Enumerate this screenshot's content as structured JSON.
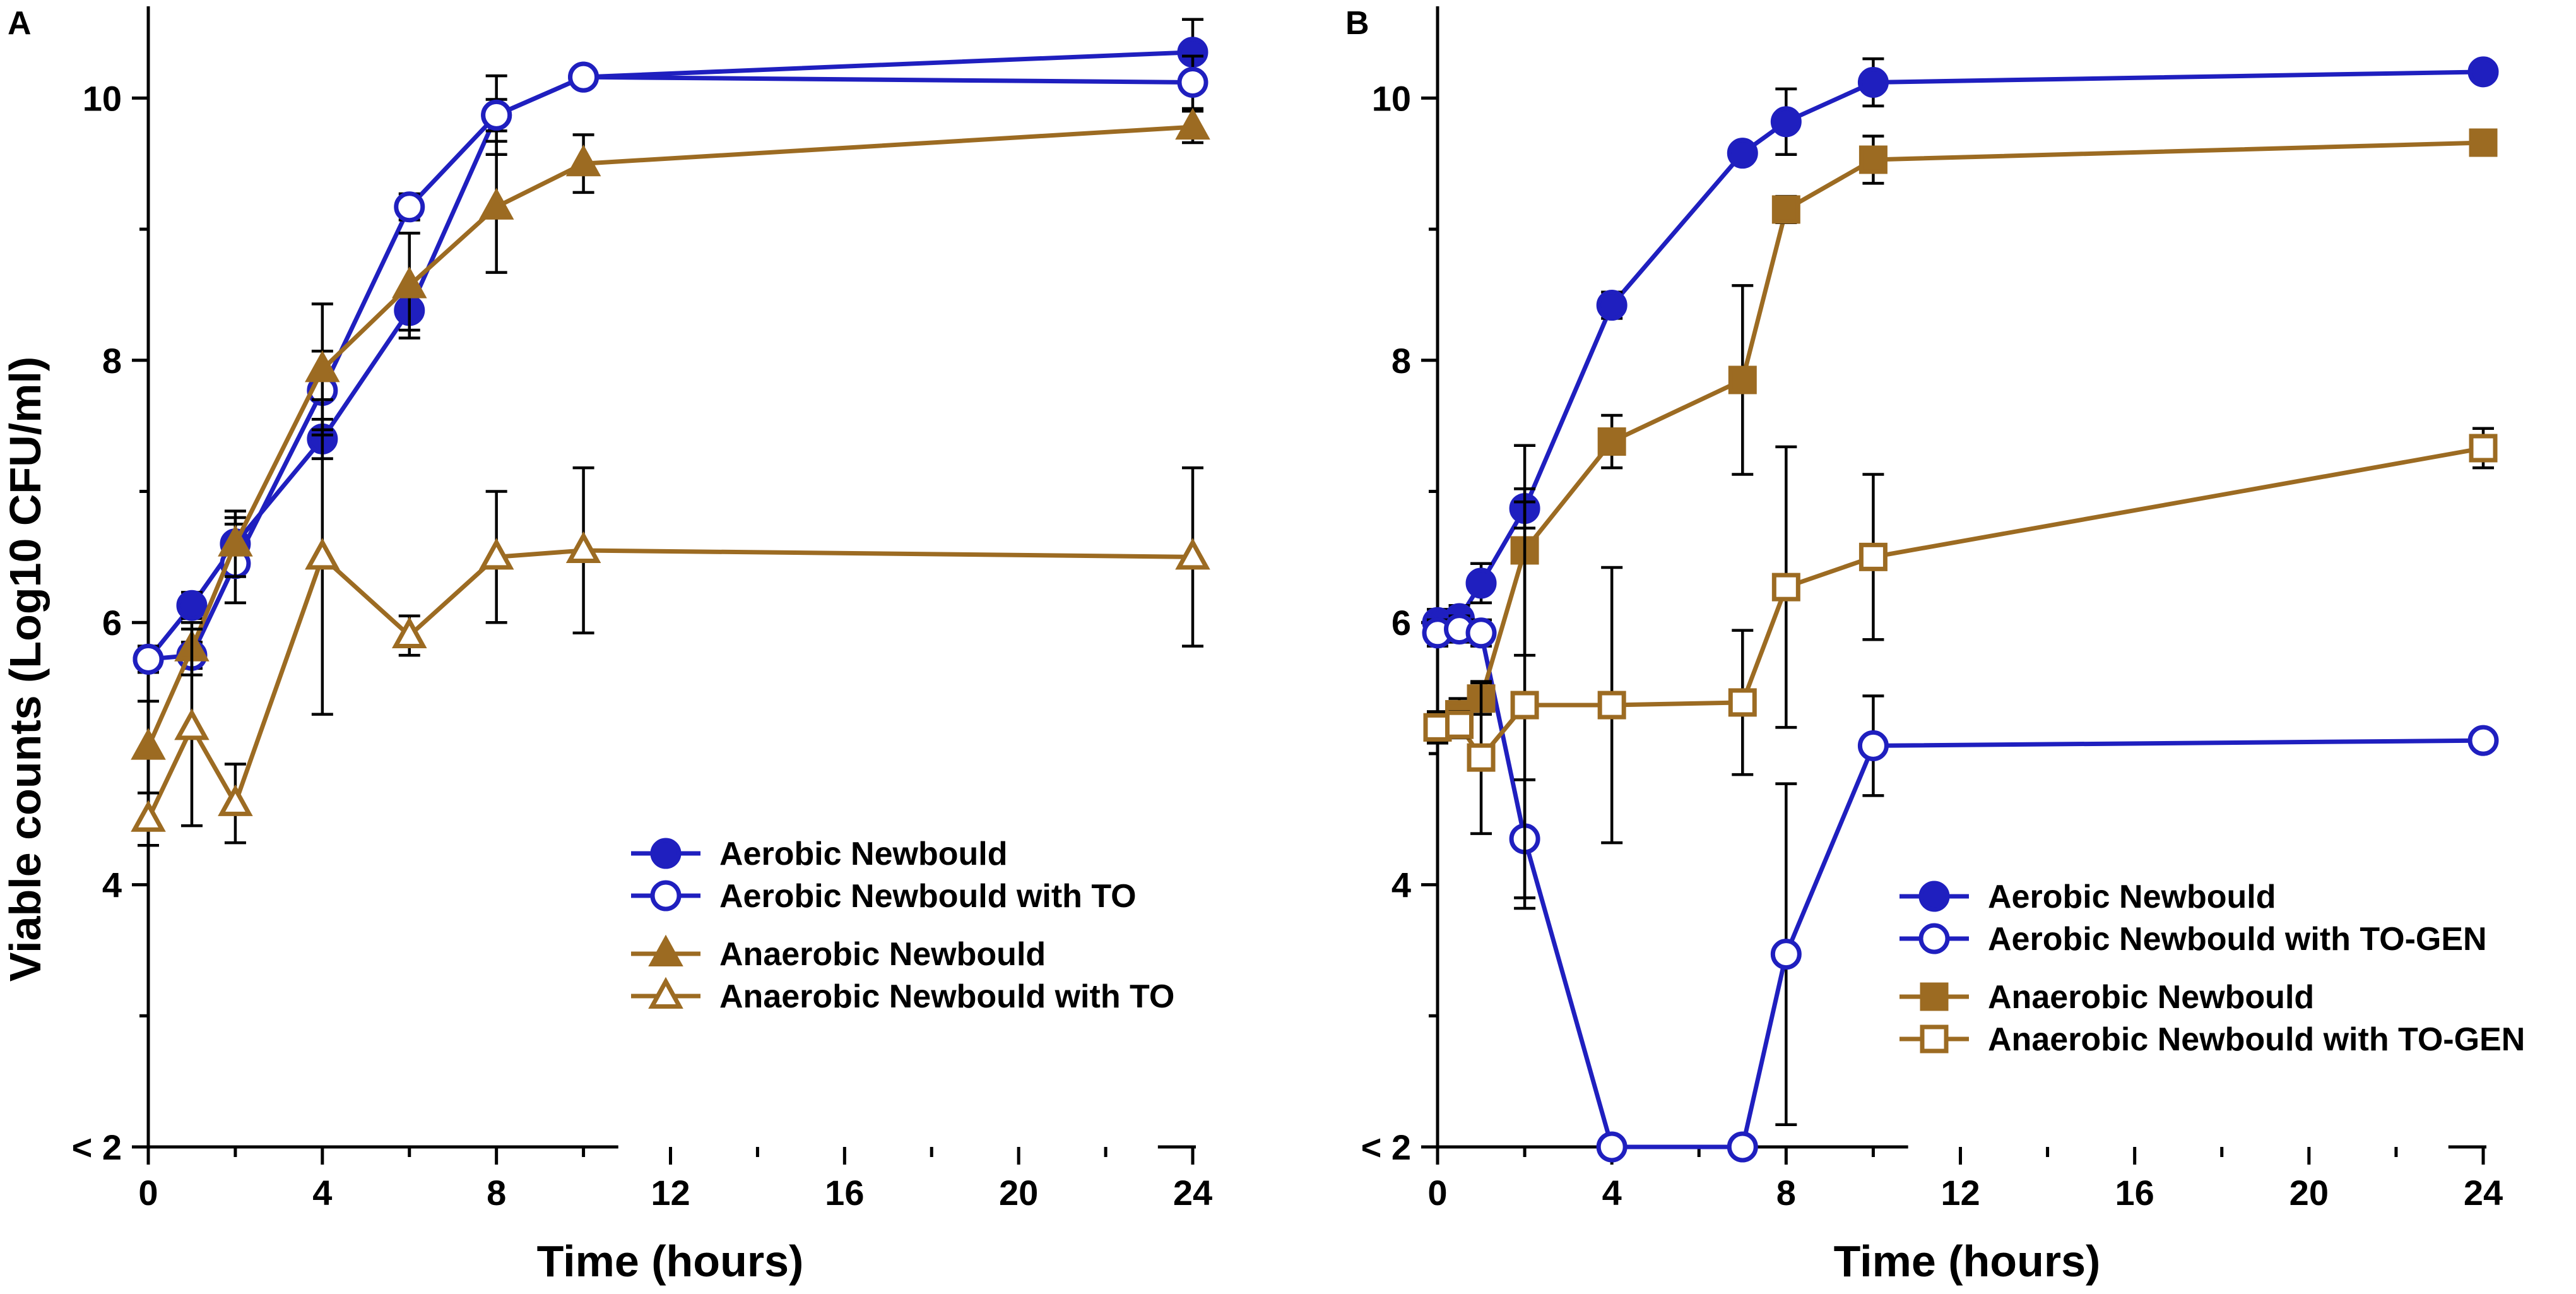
{
  "chart_data": [
    {
      "type": "line",
      "panel": "A",
      "xlabel": "Time (hours)",
      "ylabel": "Viable counts (Log10 CFU/ml)",
      "xlim": [
        0,
        24
      ],
      "ylim": [
        2,
        10.7
      ],
      "xticks": [
        0,
        4,
        8,
        12,
        16,
        20,
        24
      ],
      "xtick_labels": [
        "0",
        "4",
        "8",
        "12",
        "16",
        "20",
        "24"
      ],
      "yticks": [
        2,
        4,
        6,
        8,
        10
      ],
      "ytick_labels": [
        "< 2",
        "4",
        "6",
        "8",
        "10"
      ],
      "x_break": [
        10.8,
        23.2
      ],
      "legend_position": "lower-right",
      "series": [
        {
          "name": "Aerobic Newbould",
          "color": "#1f1fbf",
          "marker": "circle",
          "filled": true,
          "x": [
            0,
            1,
            2,
            4,
            6,
            8,
            10,
            24
          ],
          "y": [
            5.72,
            6.13,
            6.6,
            7.4,
            8.38,
            9.87,
            10.16,
            10.35
          ],
          "err": [
            0.1,
            0.1,
            0.2,
            0.15,
            0.15,
            0.12,
            0.05,
            0.25
          ]
        },
        {
          "name": "Aerobic Newbould with TO",
          "color": "#1f1fbf",
          "marker": "circle",
          "filled": false,
          "x": [
            0,
            1,
            2,
            4,
            6,
            8,
            10,
            24
          ],
          "y": [
            5.72,
            5.75,
            6.45,
            7.77,
            9.17,
            9.87,
            10.16,
            10.12
          ],
          "err": [
            0.1,
            0.1,
            0.3,
            0.3,
            0.1,
            0.3,
            0.05,
            0.2
          ]
        },
        {
          "name": "Anaerobic Newbould",
          "color": "#9c6b22",
          "marker": "triangle",
          "filled": true,
          "x": [
            0,
            1,
            2,
            4,
            6,
            8,
            10,
            24
          ],
          "y": [
            5.05,
            5.8,
            6.6,
            7.93,
            8.57,
            9.17,
            9.5,
            9.78
          ],
          "err": [
            0.35,
            0.2,
            0.25,
            0.5,
            0.4,
            0.5,
            0.22,
            0.12
          ]
        },
        {
          "name": "Anaerobic Newbould with TO",
          "color": "#9c6b22",
          "marker": "triangle",
          "filled": false,
          "x": [
            0,
            1,
            2,
            4,
            6,
            8,
            10,
            24
          ],
          "y": [
            4.5,
            5.2,
            4.62,
            6.5,
            5.9,
            6.5,
            6.55,
            6.5
          ],
          "err": [
            0.2,
            0.75,
            0.3,
            1.2,
            0.15,
            0.5,
            0.63,
            0.68
          ]
        }
      ]
    },
    {
      "type": "line",
      "panel": "B",
      "xlabel": "Time (hours)",
      "ylabel": "",
      "xlim": [
        0,
        24
      ],
      "ylim": [
        2,
        10.7
      ],
      "xticks": [
        0,
        4,
        8,
        12,
        16,
        20,
        24
      ],
      "xtick_labels": [
        "0",
        "4",
        "8",
        "12",
        "16",
        "20",
        "24"
      ],
      "yticks": [
        2,
        4,
        6,
        8,
        10
      ],
      "ytick_labels": [
        "< 2",
        "4",
        "6",
        "8",
        "10"
      ],
      "x_break": [
        10.8,
        23.2
      ],
      "legend_position": "lower-right",
      "series": [
        {
          "name": "Aerobic Newbould",
          "color": "#1f1fbf",
          "marker": "circle",
          "filled": true,
          "x": [
            0,
            0.5,
            1,
            2,
            4,
            7,
            8,
            10,
            24
          ],
          "y": [
            6.0,
            6.03,
            6.3,
            6.87,
            8.42,
            9.58,
            9.82,
            10.12,
            10.2
          ],
          "err": [
            0.1,
            0.1,
            0.15,
            0.15,
            0.1,
            0.05,
            0.25,
            0.18,
            0.05
          ]
        },
        {
          "name": "Aerobic Newbould with TO-GEN",
          "color": "#1f1fbf",
          "marker": "circle",
          "filled": false,
          "x": [
            0,
            0.5,
            1,
            2,
            4,
            7,
            8,
            10,
            24
          ],
          "y": [
            5.92,
            5.95,
            5.92,
            4.35,
            2,
            2,
            3.47,
            5.06,
            5.1
          ],
          "err": [
            0.1,
            0.1,
            0.1,
            0.45,
            0,
            0,
            1.3,
            0.38,
            0.05
          ]
        },
        {
          "name": "Anaerobic Newbould",
          "color": "#9c6b22",
          "marker": "square",
          "filled": true,
          "x": [
            0,
            0.5,
            1,
            2,
            4,
            7,
            8,
            10,
            24
          ],
          "y": [
            5.2,
            5.3,
            5.42,
            6.55,
            7.38,
            7.85,
            9.15,
            9.53,
            9.66
          ],
          "err": [
            0.12,
            0.12,
            0.12,
            0.8,
            0.2,
            0.72,
            0.1,
            0.18,
            0.06
          ]
        },
        {
          "name": "Anaerobic Newbould with TO-GEN",
          "color": "#9c6b22",
          "marker": "square",
          "filled": false,
          "x": [
            0,
            0.5,
            1,
            2,
            4,
            7,
            8,
            10,
            24
          ],
          "y": [
            5.2,
            5.22,
            4.97,
            5.37,
            5.37,
            5.39,
            6.27,
            6.5,
            7.33
          ],
          "err": [
            0.1,
            0.1,
            0.58,
            1.55,
            1.05,
            0.55,
            1.07,
            0.63,
            0.15
          ]
        }
      ]
    }
  ]
}
